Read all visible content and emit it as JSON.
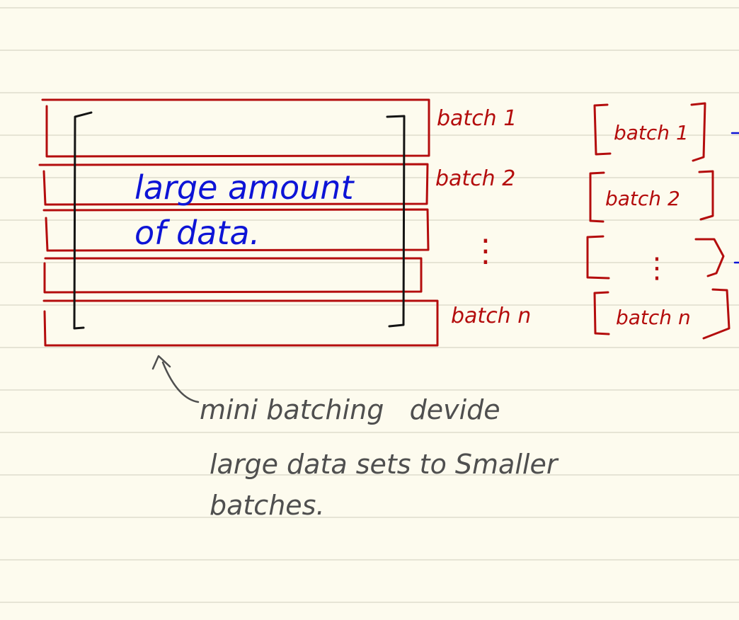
{
  "colors": {
    "paper": "#fdfbee",
    "rule_line": "#d8d6c6",
    "red_ink": "#b40d0d",
    "blue_ink": "#0d14d6",
    "black_ink": "#141414",
    "grey_ink": "#4f4f4f"
  },
  "data_block": {
    "text_line_1": "large amount",
    "text_line_2": "of data."
  },
  "batch_labels": [
    "batch 1",
    "batch 2",
    "⋮",
    "batch n"
  ],
  "batch_brackets": [
    "batch 1",
    "batch 2",
    "⋮",
    "batch n"
  ],
  "annotation": {
    "line_1": "mini batching   devide",
    "line_2": "large data sets to Smaller",
    "line_3": "batches."
  }
}
